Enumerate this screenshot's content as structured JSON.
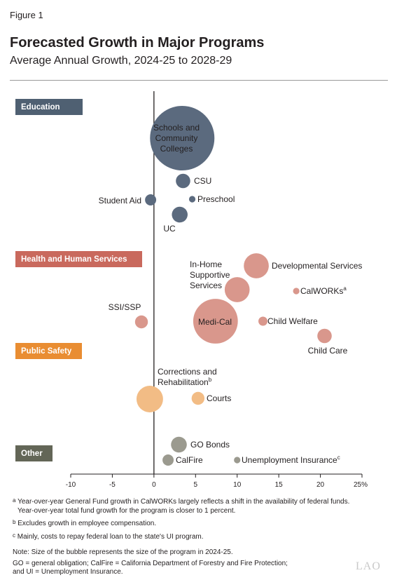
{
  "figure_label": "Figure 1",
  "title": "Forecasted Growth in Major Programs",
  "subtitle": "Average Annual Growth, 2024-25 to 2028-29",
  "chart_data": {
    "type": "scatter",
    "title": "Forecasted Growth in Major Programs",
    "subtitle": "Average Annual Growth, 2024-25 to 2028-29",
    "xlim": [
      -10,
      25
    ],
    "x_ticks": [
      -10,
      -5,
      0,
      5,
      10,
      15,
      20,
      25
    ],
    "x_tick_labels": [
      "-10",
      "-5",
      "0",
      "5",
      "10",
      "15",
      "20",
      "25%"
    ],
    "grid": false,
    "groups": [
      {
        "name": "Education",
        "color": "#5b6a7e",
        "points": [
          {
            "label": "Schools and Community Colleges",
            "label_lines": [
              "Schools and",
              "Community",
              "Colleges"
            ],
            "x": 3.4,
            "relative_size": 1.0
          },
          {
            "label": "CSU",
            "x": 3.5,
            "relative_size": 0.05
          },
          {
            "label": "Student Aid",
            "x": -0.4,
            "relative_size": 0.03
          },
          {
            "label": "Preschool",
            "x": 4.6,
            "relative_size": 0.01
          },
          {
            "label": "UC",
            "x": 3.1,
            "relative_size": 0.06
          }
        ]
      },
      {
        "name": "Health and Human Services",
        "color": "#d9978c",
        "points": [
          {
            "label": "Developmental Services",
            "x": 12.3,
            "relative_size": 0.15
          },
          {
            "label": "In-Home Supportive Services",
            "label_lines": [
              "In-Home",
              "Supportive",
              "Services"
            ],
            "x": 10.0,
            "relative_size": 0.15
          },
          {
            "label": "CalWORKs",
            "note": "a",
            "x": 17.1,
            "relative_size": 0.01
          },
          {
            "label": "SSI/SSP",
            "x": -1.5,
            "relative_size": 0.04
          },
          {
            "label": "Medi-Cal",
            "x": 7.4,
            "relative_size": 0.48
          },
          {
            "label": "Child Welfare",
            "x": 13.1,
            "relative_size": 0.02
          },
          {
            "label": "Child Care",
            "x": 20.5,
            "relative_size": 0.05
          }
        ]
      },
      {
        "name": "Public Safety",
        "color": "#f2bc85",
        "points": [
          {
            "label": "Corrections and Rehabilitation",
            "label_lines": [
              "Corrections and",
              "Rehabilitation"
            ],
            "note": "b",
            "x": -0.5,
            "relative_size": 0.17
          },
          {
            "label": "Courts",
            "x": 5.3,
            "relative_size": 0.04
          }
        ]
      },
      {
        "name": "Other",
        "color": "#9b9a8f",
        "points": [
          {
            "label": "GO Bonds",
            "x": 3.0,
            "relative_size": 0.06
          },
          {
            "label": "CalFire",
            "x": 1.7,
            "relative_size": 0.03
          },
          {
            "label": "Unemployment Insurance",
            "note": "c",
            "x": 10.0,
            "relative_size": 0.01
          }
        ]
      }
    ],
    "category_label_colors": {
      "Education": "#4f6072",
      "Health and Human Services": "#c9695d",
      "Public Safety": "#e98d32",
      "Other": "#636657"
    }
  },
  "footnotes": [
    {
      "marker": "a",
      "lines": [
        "Year-over-year General Fund growth in CalWORKs largely reflects a shift in the availability of federal funds.",
        "Year-over-year total fund growth for the program is closer to 1 percent."
      ]
    },
    {
      "marker": "b",
      "lines": [
        "Excludes growth in employee compensation."
      ]
    },
    {
      "marker": "c",
      "lines": [
        "Mainly, costs to repay federal loan to the state's UI program."
      ]
    }
  ],
  "notes": [
    "Note: Size of the bubble represents the size of the program in 2024-25.",
    "GO = general obligation; CalFire = California Department of Forestry and Fire Protection;",
    "and UI = Unemployment Insurance."
  ],
  "logo_text": "LAO"
}
